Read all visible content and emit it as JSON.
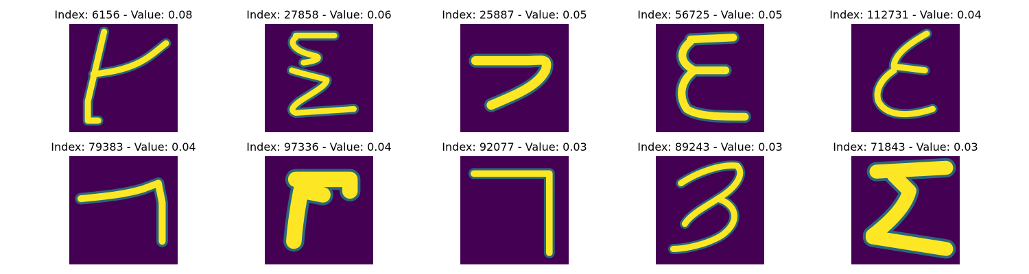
{
  "colors": {
    "background": "#440154",
    "stroke_core": "#fde725",
    "stroke_mid": "#35b779",
    "stroke_edge": "#21918c"
  },
  "panels": [
    {
      "title": "Index: 6156 - Value: 0.08",
      "glyph": "handwritten-character-t-icon"
    },
    {
      "title": "Index: 27858 - Value: 0.06",
      "glyph": "handwritten-character-sigma-icon"
    },
    {
      "title": "Index: 25887 - Value: 0.05",
      "glyph": "handwritten-character-hook-icon"
    },
    {
      "title": "Index: 56725 - Value: 0.05",
      "glyph": "handwritten-character-e-icon"
    },
    {
      "title": "Index: 112731 - Value: 0.04",
      "glyph": "handwritten-character-epsilon-icon"
    },
    {
      "title": "Index: 79383 - Value: 0.04",
      "glyph": "handwritten-character-angle-icon"
    },
    {
      "title": "Index: 97336 - Value: 0.04",
      "glyph": "handwritten-character-f-icon"
    },
    {
      "title": "Index: 92077 - Value: 0.03",
      "glyph": "handwritten-character-seven-icon"
    },
    {
      "title": "Index: 89243 - Value: 0.03",
      "glyph": "handwritten-character-three-icon"
    },
    {
      "title": "Index: 71843 - Value: 0.03",
      "glyph": "handwritten-character-sigma-bold-icon"
    }
  ]
}
